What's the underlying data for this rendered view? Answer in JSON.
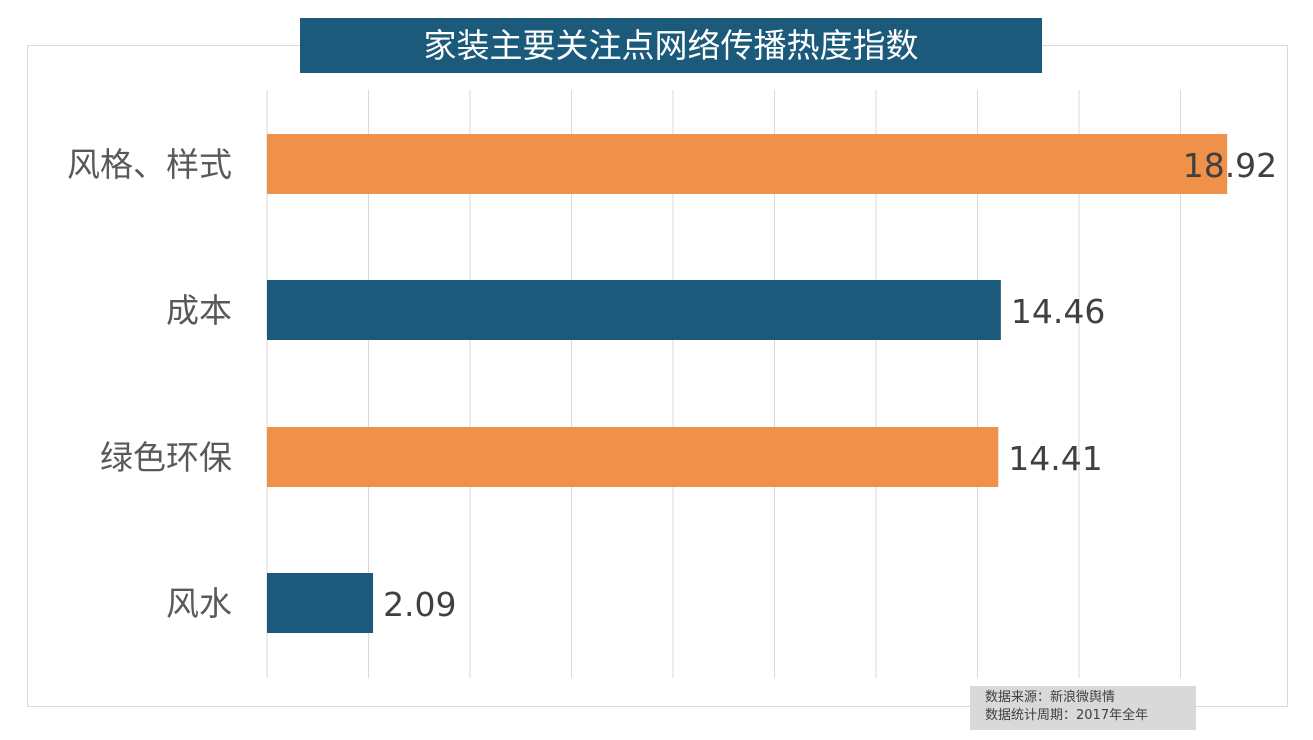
{
  "chart_data": {
    "type": "bar",
    "orientation": "horizontal",
    "title": "家装主要关注点网络传播热度指数",
    "categories": [
      "风格、样式",
      "成本",
      "绿色环保",
      "风水"
    ],
    "values": [
      18.92,
      14.46,
      14.41,
      2.09
    ],
    "data_labels": [
      "18.92",
      "14.46",
      "14.41",
      "2.09"
    ],
    "bar_colors": [
      "#f0914a",
      "#1b5a7a",
      "#f0914a",
      "#1b5a7a"
    ],
    "xlim": [
      0,
      18.92
    ],
    "grid_step": 2,
    "grid": true,
    "xlabel": "",
    "ylabel": ""
  },
  "source": {
    "line1": "数据来源：新浪微舆情",
    "line2": "数据统计周期：2017年全年"
  }
}
